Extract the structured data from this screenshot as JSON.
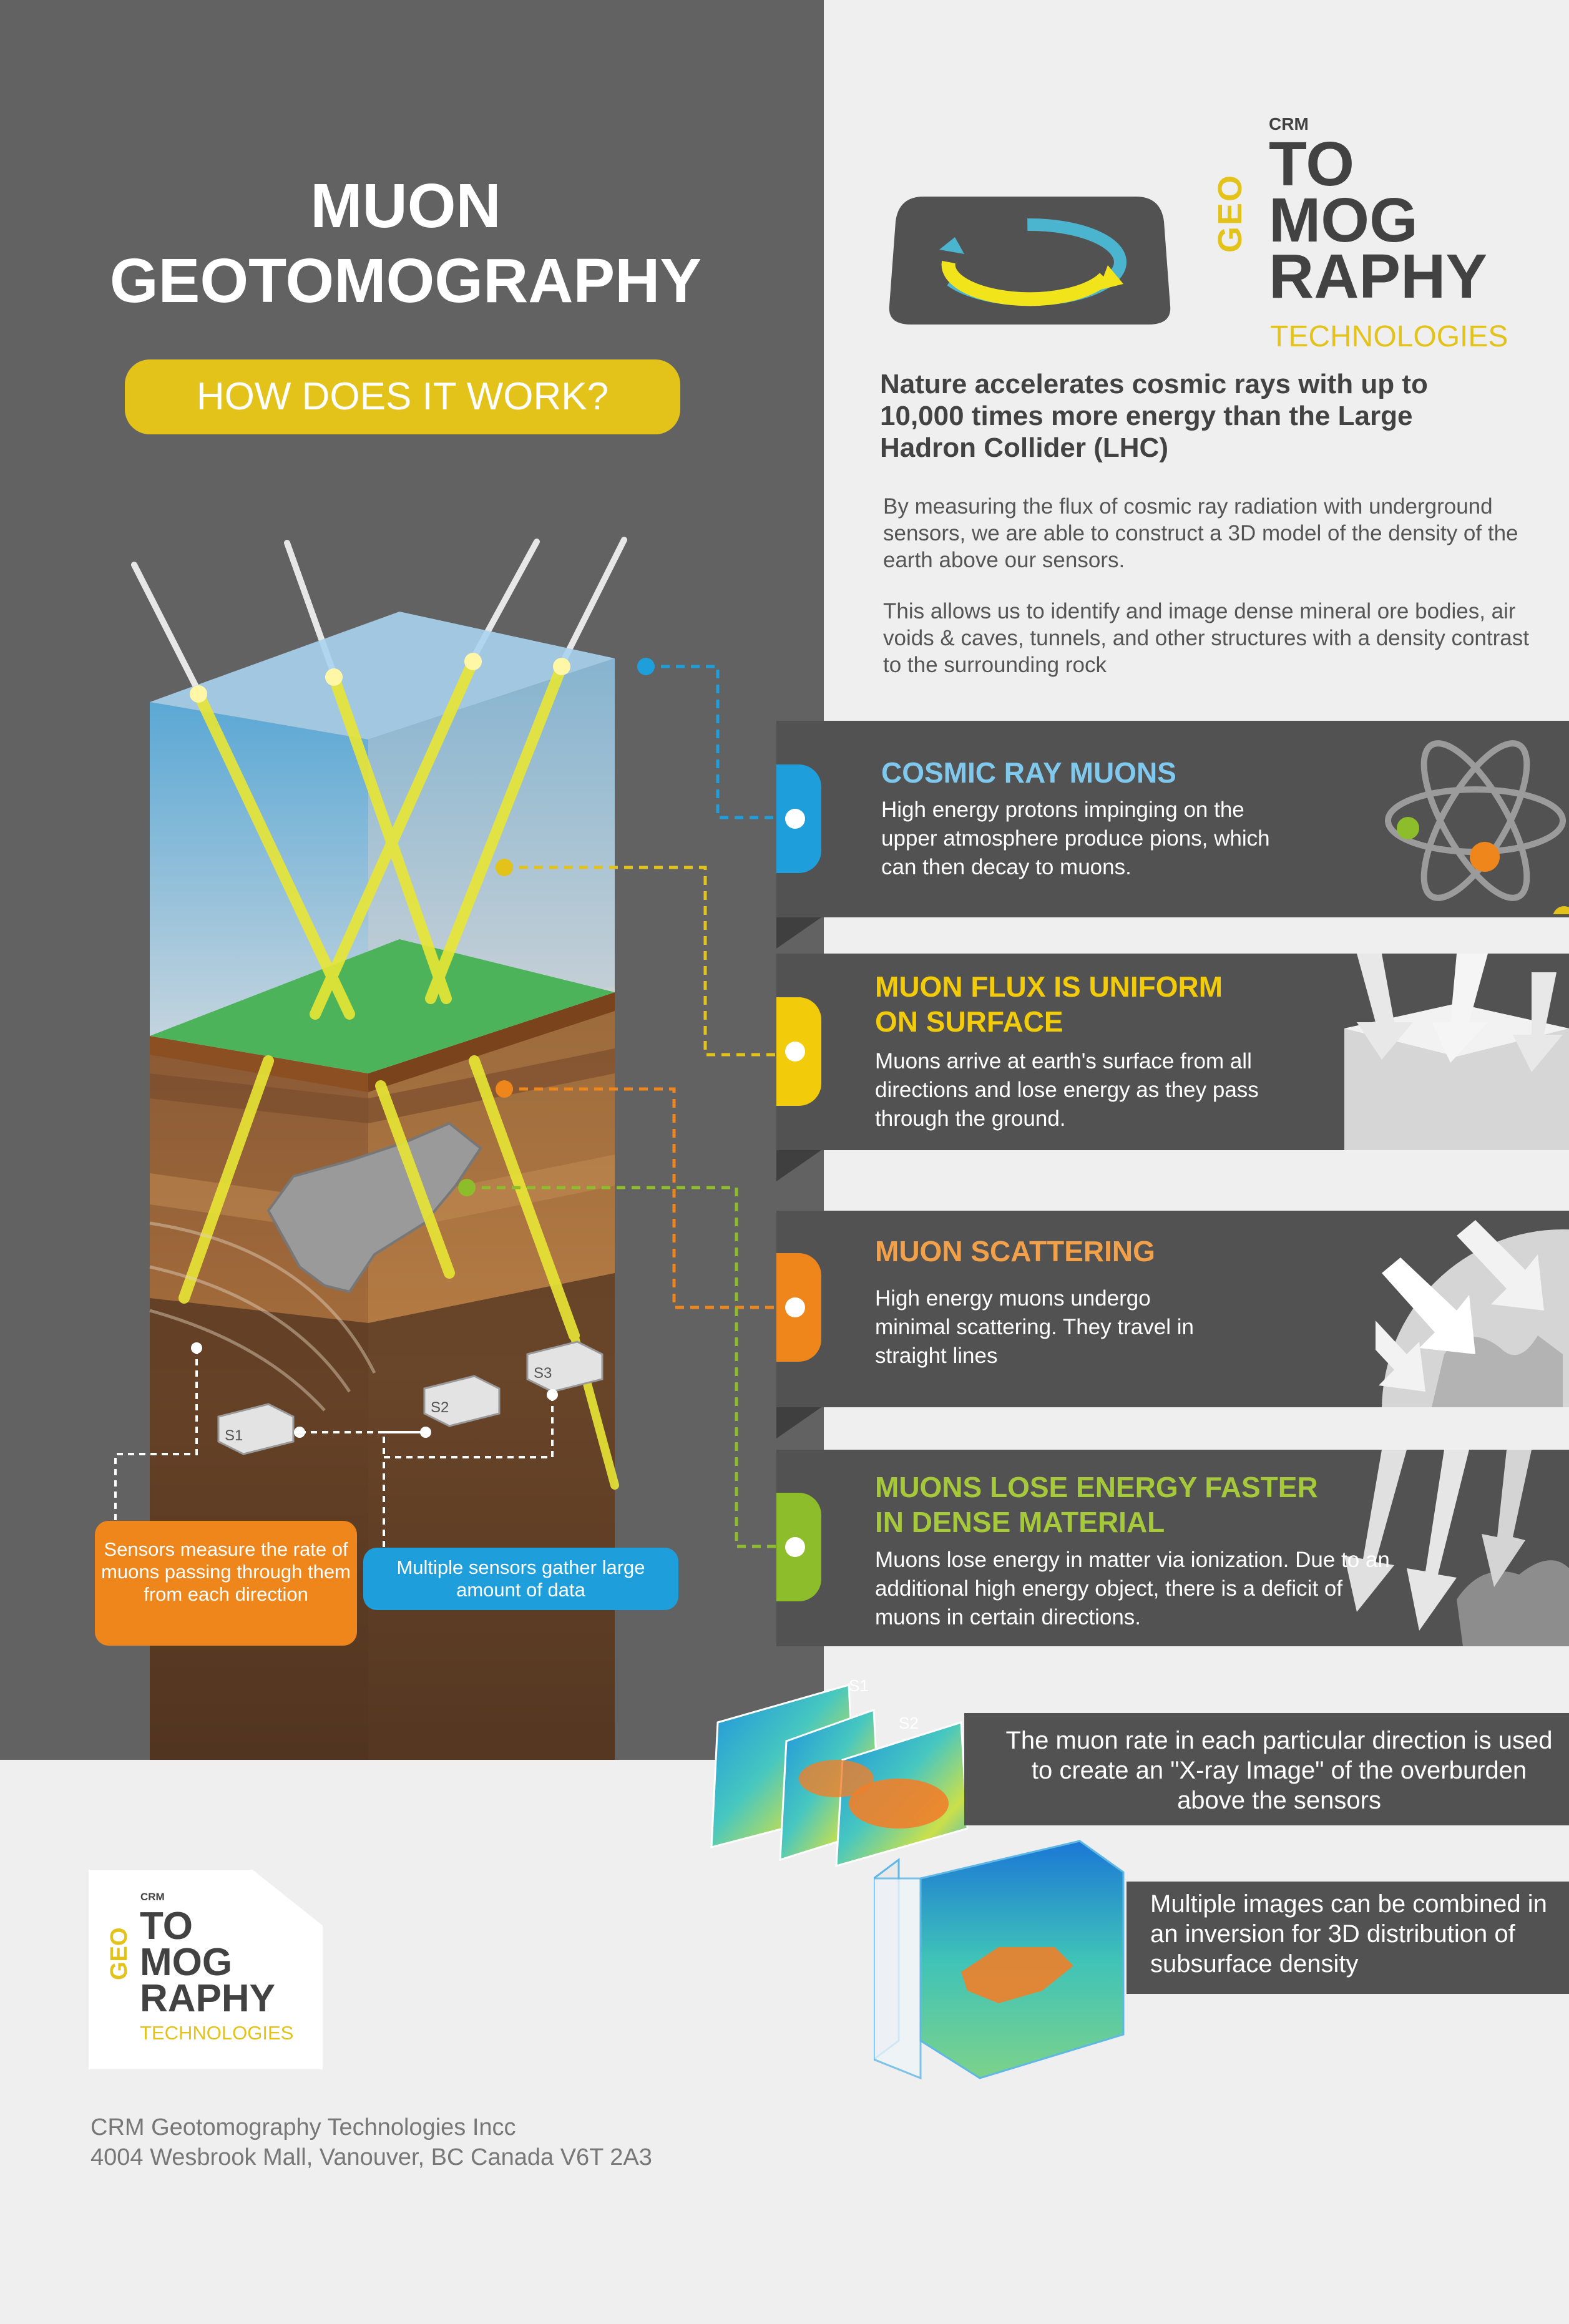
{
  "header": {
    "title_line1": "MUON",
    "title_line2": "GEOTOMOGRAPHY",
    "subtitle": "HOW DOES IT WORK?"
  },
  "logo": {
    "crm": "CRM",
    "geo": "GEO",
    "line1": "TO",
    "line2": "MOG",
    "line3": "RAPHY",
    "technologies": "TECHNOLOGIES"
  },
  "intro": {
    "heading": "Nature accelerates cosmic rays with up to 10,000 times more energy than the Large Hadron Collider (LHC)",
    "para1": "By measuring the flux of cosmic ray radiation with underground sensors, we are able to construct a 3D model of the density of the earth above our sensors.",
    "para2": "This allows us to identify and image dense mineral ore bodies, air voids & caves, tunnels, and other structures with a density contrast to the surrounding rock"
  },
  "cards": [
    {
      "title": "COSMIC RAY MUONS",
      "body": "High energy protons impinging on the upper atmosphere produce pions, which can then decay to muons."
    },
    {
      "title": "MUON FLUX IS UNIFORM ON SURFACE",
      "body": "Muons arrive at earth's surface from all directions and lose energy as they pass through the ground."
    },
    {
      "title": "MUON SCATTERING",
      "body": "High energy muons undergo minimal scattering. They travel in straight lines"
    },
    {
      "title": "MUONS LOSE ENERGY FASTER IN DENSE MATERIAL",
      "body": "Muons lose energy in matter via ionization. Due to an additional high energy object, there is a deficit of muons in certain directions."
    }
  ],
  "sensors": {
    "s1": "S1",
    "s2": "S2",
    "s3": "S3",
    "orange_note": "Sensors measure the rate of muons passing through them from each direction",
    "blue_note": "Multiple sensors gather large amount of data"
  },
  "results": {
    "xray": "The muon rate in each particular direction is used to create an \"X-ray Image\" of the overburden above the sensors",
    "combined": "Multiple images can be combined in an inversion for 3D distribution of subsurface density"
  },
  "footer": {
    "company": "CRM Geotomography Technologies Incc",
    "address": "4004 Wesbrook Mall, Vanouver, BC Canada V6T 2A3"
  },
  "colors": {
    "dark_grey": "#636262",
    "card_grey": "#535252",
    "yellow": "#e3c21a",
    "blue": "#1e9fdc",
    "orange": "#ef861c",
    "green": "#8dbd2a",
    "light_blue_title": "#7fc8ee"
  }
}
